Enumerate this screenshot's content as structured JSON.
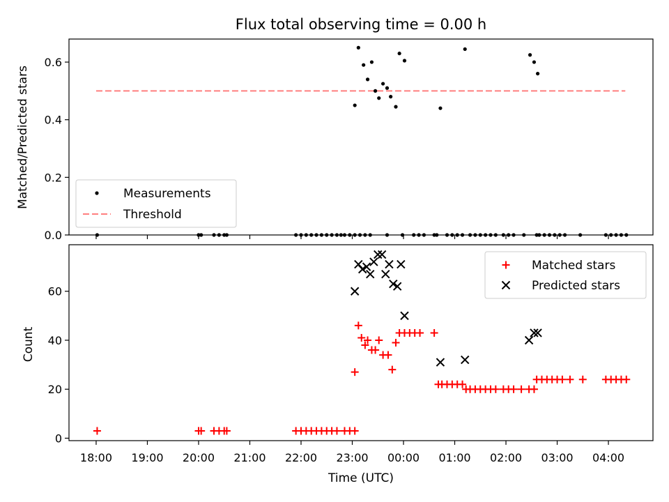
{
  "chart_data": [
    {
      "type": "scatter",
      "title": "Flux total observing time = 0.00 h",
      "ylabel": "Matched/Predicted stars",
      "ylim": [
        0,
        0.68
      ],
      "xlim": [
        -0.53,
        10.87
      ],
      "yticks": [
        0.0,
        0.2,
        0.4,
        0.6
      ],
      "ytick_labels": [
        "0.0",
        "0.2",
        "0.4",
        "0.6"
      ],
      "legend_position": "lower-left",
      "threshold": {
        "name": "Threshold",
        "value": 0.5,
        "x_start": 0.0,
        "x_end": 10.33,
        "color": "#ff7f7f"
      },
      "series": [
        {
          "name": "Measurements",
          "color": "#000000",
          "marker": "dot",
          "x": [
            0.02,
            2.0,
            2.05,
            2.3,
            2.4,
            2.5,
            2.55,
            3.9,
            4.0,
            4.1,
            4.2,
            4.3,
            4.4,
            4.5,
            4.6,
            4.7,
            4.85,
            4.95,
            5.05,
            5.15,
            5.25,
            5.35,
            4.78,
            5.68,
            5.98,
            6.2,
            6.3,
            6.4,
            6.6,
            6.65,
            6.85,
            6.95,
            7.05,
            7.15,
            7.3,
            7.4,
            7.5,
            7.6,
            7.7,
            7.8,
            7.95,
            8.05,
            8.15,
            8.35,
            8.6,
            8.65,
            8.75,
            8.85,
            8.95,
            9.05,
            9.15,
            9.45,
            9.95,
            10.05,
            10.15,
            10.25,
            10.35,
            5.05,
            5.12,
            5.22,
            5.3,
            5.38,
            5.45,
            5.52,
            5.6,
            5.68,
            5.75,
            5.85,
            5.92,
            6.02,
            6.72,
            7.2,
            8.47,
            8.55,
            8.62
          ],
          "y": [
            0,
            0,
            0,
            0,
            0,
            0,
            0,
            0,
            0,
            0,
            0,
            0,
            0,
            0,
            0,
            0,
            0,
            0,
            0,
            0,
            0,
            0,
            0,
            0,
            0,
            0,
            0,
            0,
            0,
            0,
            0,
            0,
            0,
            0,
            0,
            0,
            0,
            0,
            0,
            0,
            0,
            0,
            0,
            0,
            0,
            0,
            0,
            0,
            0,
            0,
            0,
            0,
            0,
            0,
            0,
            0,
            0,
            0.45,
            0.65,
            0.59,
            0.54,
            0.6,
            0.5,
            0.475,
            0.525,
            0.51,
            0.48,
            0.445,
            0.63,
            0.605,
            0.44,
            0.645,
            0.625,
            0.6,
            0.56
          ]
        }
      ]
    },
    {
      "type": "scatter",
      "xlabel": "Time (UTC)",
      "ylabel": "Count",
      "ylim": [
        -1,
        79
      ],
      "xlim": [
        -0.53,
        10.87
      ],
      "yticks": [
        0,
        20,
        40,
        60
      ],
      "ytick_labels": [
        "0",
        "20",
        "40",
        "60"
      ],
      "xticks": [
        0,
        1,
        2,
        3,
        4,
        5,
        6,
        7,
        8,
        9,
        10
      ],
      "xtick_labels": [
        "18:00",
        "19:00",
        "20:00",
        "21:00",
        "22:00",
        "23:00",
        "00:00",
        "01:00",
        "02:00",
        "03:00",
        "04:00"
      ],
      "legend_position": "top-right",
      "series": [
        {
          "name": "Matched stars",
          "color": "#ff0000",
          "marker": "plus",
          "x": [
            0.02,
            2.0,
            2.05,
            2.3,
            2.4,
            2.5,
            2.55,
            3.9,
            4.0,
            4.1,
            4.2,
            4.3,
            4.4,
            4.5,
            4.6,
            4.7,
            4.85,
            4.95,
            5.05,
            5.05,
            5.12,
            5.18,
            5.25,
            5.3,
            5.38,
            5.45,
            5.52,
            5.6,
            5.7,
            5.78,
            5.85,
            5.92,
            6.02,
            6.12,
            6.22,
            6.32,
            6.6,
            6.68,
            6.75,
            6.85,
            6.95,
            7.05,
            7.15,
            7.22,
            7.3,
            7.4,
            7.5,
            7.6,
            7.7,
            7.8,
            7.95,
            8.05,
            8.15,
            8.3,
            8.45,
            8.55,
            8.6,
            8.7,
            8.8,
            8.9,
            9.0,
            9.1,
            9.25,
            9.5,
            9.95,
            10.05,
            10.15,
            10.25,
            10.35
          ],
          "y": [
            3,
            3,
            3,
            3,
            3,
            3,
            3,
            3,
            3,
            3,
            3,
            3,
            3,
            3,
            3,
            3,
            3,
            3,
            3,
            27,
            46,
            41,
            38,
            40,
            36,
            36,
            40,
            34,
            34,
            28,
            39,
            43,
            43,
            43,
            43,
            43,
            43,
            22,
            22,
            22,
            22,
            22,
            22,
            20,
            20,
            20,
            20,
            20,
            20,
            20,
            20,
            20,
            20,
            20,
            20,
            20,
            24,
            24,
            24,
            24,
            24,
            24,
            24,
            24,
            24,
            24,
            24,
            24,
            24
          ]
        },
        {
          "name": "Predicted stars",
          "color": "#000000",
          "marker": "x",
          "x": [
            5.05,
            5.12,
            5.2,
            5.28,
            5.35,
            5.42,
            5.5,
            5.58,
            5.65,
            5.72,
            5.8,
            5.88,
            5.95,
            6.02,
            6.72,
            7.2,
            8.45,
            8.55,
            8.62
          ],
          "y": [
            60,
            71,
            69,
            70,
            67,
            72,
            75,
            75,
            67,
            71,
            63,
            62,
            71,
            50,
            31,
            32,
            40,
            43,
            43
          ]
        }
      ]
    }
  ]
}
